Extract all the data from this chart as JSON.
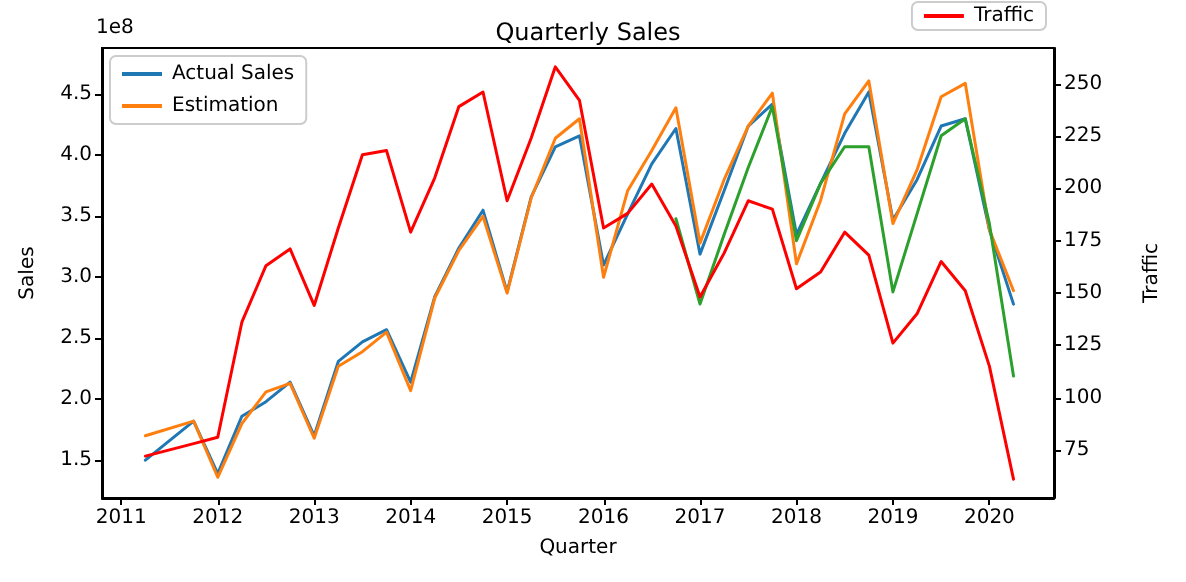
{
  "chart_data": {
    "type": "line",
    "title": "Quarterly Sales",
    "xlabel": "Quarter",
    "ylabel": "Sales",
    "y2label": "Traffic",
    "annotations": [
      "1e8"
    ],
    "x": [
      2011.25,
      2011.75,
      2012.0,
      2012.25,
      2012.5,
      2012.75,
      2013.0,
      2013.25,
      2013.5,
      2013.75,
      2014.0,
      2014.25,
      2014.5,
      2014.75,
      2015.0,
      2015.25,
      2015.5,
      2015.75,
      2016.0,
      2016.25,
      2016.5,
      2016.75,
      2017.0,
      2017.25,
      2017.5,
      2017.75,
      2018.0,
      2018.25,
      2018.5,
      2018.75,
      2019.0,
      2019.25,
      2019.5,
      2019.75,
      2020.0,
      2020.25
    ],
    "series": [
      {
        "name": "Actual Sales",
        "color": "#1f77b4",
        "values": [
          1.5,
          1.82,
          1.39,
          1.86,
          1.98,
          2.14,
          1.7,
          2.31,
          2.47,
          2.57,
          2.14,
          2.84,
          3.24,
          3.55,
          2.88,
          3.66,
          4.07,
          4.16,
          3.1,
          3.52,
          3.93,
          4.22,
          3.19,
          3.71,
          4.24,
          4.42,
          3.35,
          3.77,
          4.18,
          4.52,
          3.47,
          3.8,
          4.24,
          4.3,
          3.39,
          2.78
        ]
      },
      {
        "name": "Estimation",
        "color": "#ff7f0e",
        "values": [
          1.7,
          1.82,
          1.36,
          1.8,
          2.06,
          2.13,
          1.68,
          2.27,
          2.39,
          2.55,
          2.07,
          2.83,
          3.22,
          3.5,
          2.87,
          3.65,
          4.14,
          4.3,
          3.0,
          3.71,
          4.04,
          4.39,
          3.28,
          3.8,
          4.24,
          4.51,
          3.11,
          3.63,
          4.34,
          4.61,
          3.44,
          3.88,
          4.48,
          4.59,
          3.39,
          2.89
        ]
      },
      {
        "color": "#2ca02c",
        "values": [
          null,
          null,
          null,
          null,
          null,
          null,
          null,
          null,
          null,
          null,
          null,
          null,
          null,
          null,
          null,
          null,
          null,
          null,
          null,
          null,
          null,
          3.48,
          2.78,
          3.35,
          3.9,
          4.4,
          3.3,
          3.77,
          4.07,
          4.07,
          2.88,
          3.52,
          4.16,
          4.3,
          3.44,
          2.19
        ]
      },
      {
        "name": "Traffic",
        "color": "#ff0000",
        "axis": "y2",
        "values": [
          72,
          78,
          81,
          136,
          163,
          171,
          144,
          181,
          216,
          218,
          179,
          205,
          239,
          246,
          194,
          224,
          258,
          242,
          181,
          188,
          202,
          182,
          148,
          169,
          194,
          190,
          152,
          160,
          179,
          168,
          126,
          140,
          165,
          151,
          115,
          61
        ]
      }
    ],
    "xlim": [
      2010.8,
      2020.67
    ],
    "xticks": [
      2011,
      2012,
      2013,
      2014,
      2015,
      2016,
      2017,
      2018,
      2019,
      2020
    ],
    "ylim": [
      1.19,
      4.88
    ],
    "yticks": [
      1.5,
      {
        "value": 2,
        "label": "2.0"
      },
      2.5,
      {
        "value": 3,
        "label": "3.0"
      },
      3.5,
      {
        "value": 4,
        "label": "4.0"
      },
      4.5
    ],
    "y2lim": [
      52,
      267
    ],
    "y2ticks": [
      75,
      100,
      125,
      150,
      175,
      200,
      225,
      250
    ],
    "grid": false,
    "legend": "top left",
    "marker": "none",
    "line_style": "solid"
  }
}
